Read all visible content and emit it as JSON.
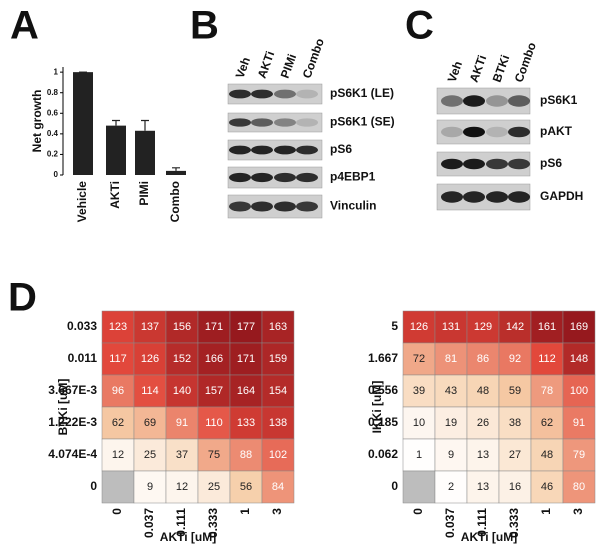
{
  "panels": [
    "A",
    "B",
    "C",
    "D"
  ],
  "blots": [
    {
      "lanes": [
        "Veh",
        "AKTi",
        "PIMi",
        "Combo"
      ],
      "rows": [
        "pS6K1 (LE)",
        "pS6K1 (SE)",
        "pS6",
        "p4EBP1",
        "Vinculin"
      ]
    },
    {
      "lanes": [
        "Veh",
        "AKTi",
        "BTKi",
        "Combo"
      ],
      "rows": [
        "pS6K1",
        "pAKT",
        "pS6",
        "GAPDH"
      ]
    }
  ],
  "chart_data": [
    {
      "type": "bar",
      "ylabel": "Net growth",
      "categories": [
        "Vehicle",
        "AKTi",
        "PIMi",
        "Combo"
      ],
      "values": [
        1,
        0.48,
        0.43,
        0.04
      ],
      "errors": [
        0,
        0.05,
        0.1,
        0.03
      ],
      "color": "#222222",
      "ylim": [
        0,
        1.05
      ],
      "yticks": [
        0,
        0.2,
        0.4,
        0.6,
        0.8,
        1
      ]
    },
    {
      "type": "heatmap",
      "xlabel": "AKTi [uM]",
      "ylabel": "BTKi [uM]",
      "x": [
        "0",
        "0.037",
        "0.111",
        "0.333",
        "1",
        "3"
      ],
      "y": [
        "0.033",
        "0.011",
        "3.667E-3",
        "1.222E-3",
        "4.074E-4",
        "0"
      ],
      "values": [
        [
          123,
          137,
          156,
          171,
          177,
          163
        ],
        [
          117,
          126,
          152,
          166,
          171,
          159
        ],
        [
          96,
          114,
          140,
          157,
          164,
          154
        ],
        [
          62,
          69,
          91,
          110,
          133,
          138
        ],
        [
          12,
          25,
          37,
          75,
          88,
          102
        ],
        [
          null,
          9,
          12,
          25,
          56,
          84
        ]
      ]
    },
    {
      "type": "heatmap",
      "xlabel": "AKTi [uM]",
      "ylabel": "IKKi [uM]",
      "x": [
        "0",
        "0.037",
        "0.111",
        "0.333",
        "1",
        "3"
      ],
      "y": [
        "5",
        "1.667",
        "0.556",
        "0.185",
        "0.062",
        "0"
      ],
      "values": [
        [
          126,
          131,
          129,
          142,
          161,
          169
        ],
        [
          72,
          81,
          86,
          92,
          112,
          148
        ],
        [
          39,
          43,
          48,
          59,
          78,
          100
        ],
        [
          10,
          19,
          26,
          38,
          62,
          91
        ],
        [
          1,
          9,
          13,
          27,
          48,
          79
        ],
        [
          null,
          2,
          13,
          16,
          46,
          80
        ]
      ]
    }
  ]
}
